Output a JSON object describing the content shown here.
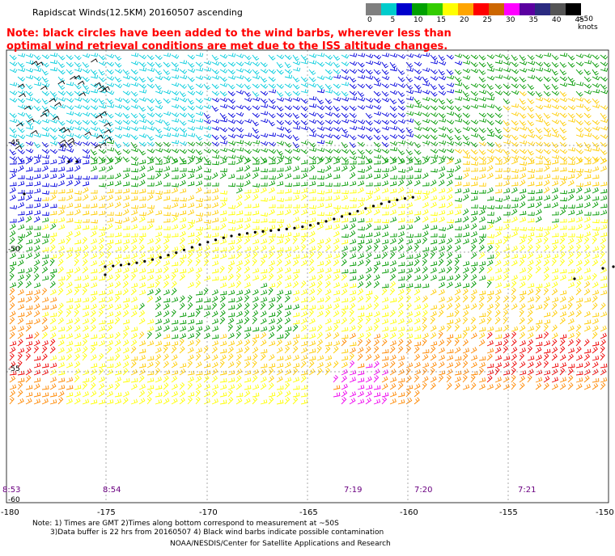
{
  "header": {
    "title": "Rapidscat Winds(12.5KM) 20160507 ascending",
    "note_line1": "Note: black circles have been added to the wind barbs, wherever less than",
    "note_line2": "optimal wind retrieval conditions are met due to the ISS altitude changes."
  },
  "colorbar": {
    "units": ">50 knots",
    "labels": [
      "0",
      "5",
      "10",
      "15",
      "20",
      "25",
      "30",
      "35",
      "40",
      "45"
    ],
    "colors": [
      "#7f7f7f",
      "#00cccc",
      "#0000cc",
      "#00a000",
      "#33cc00",
      "#ffff00",
      "#ffa500",
      "#ff0000",
      "#cc6600",
      "#ff00ff",
      "#5a00a0",
      "#2a2a80",
      "#555555",
      "#000000"
    ]
  },
  "map": {
    "region_colors": {
      "cyan": "#00ccdd",
      "blue": "#0000dd",
      "green": "#009900",
      "yellow": "#ffff00",
      "gold": "#ffcc00",
      "orange": "#ff8800",
      "red": "#ee0000",
      "magenta": "#ee00ee",
      "black": "#000000"
    },
    "lat_labels": [
      "-45",
      "-50",
      "-55",
      "-60"
    ],
    "lon_labels": [
      "-180",
      "-175",
      "-170",
      "-165",
      "-160",
      "-155",
      "-150"
    ],
    "time_labels": [
      "8:53",
      "8:54",
      "7:19",
      "7:20",
      "7:21"
    ]
  },
  "footer": {
    "line1": "Note: 1) Times are GMT 2)Times along bottom correspond to measurement at ~50S",
    "line2": "3)Data buffer is 22 hrs from 20160507 4) Black wind barbs indicate possible contamination",
    "credit": "NOAA/NESDIS/Center for Satellite Applications and Research"
  }
}
